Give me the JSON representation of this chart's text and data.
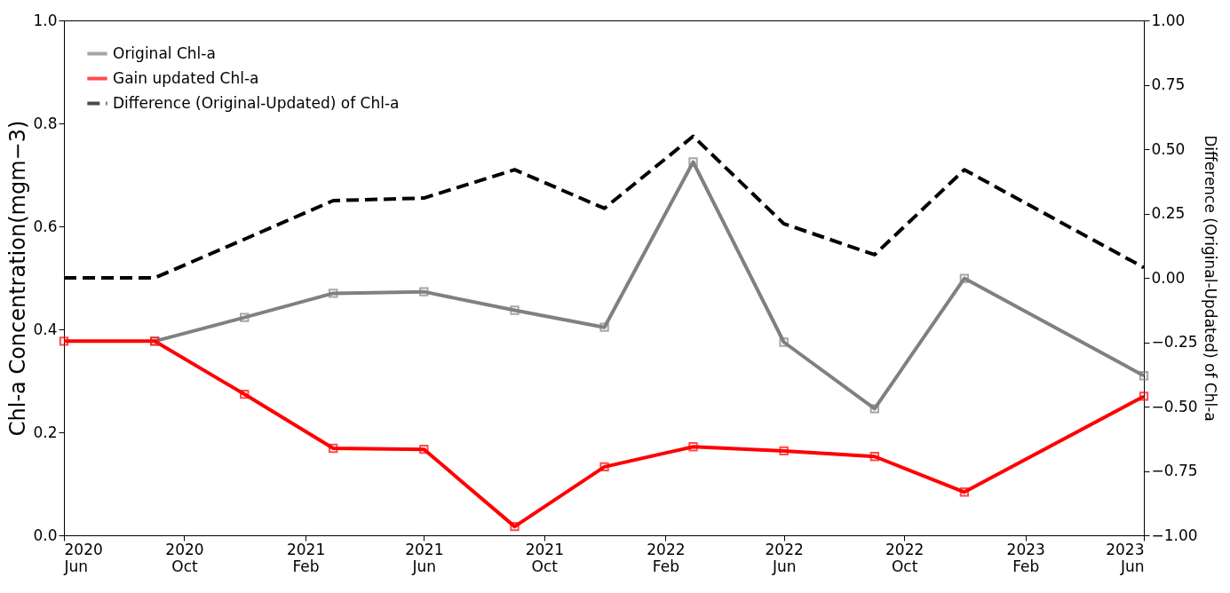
{
  "chart_data": {
    "type": "line",
    "ylabel": "Chl-a Concentration(mgm−3)",
    "y2label": "Difference (Original-Updated) of Chl-a",
    "x": [
      "2020-06",
      "2020-09",
      "2020-12",
      "2021-03",
      "2021-06",
      "2021-09",
      "2021-12",
      "2022-03",
      "2022-06",
      "2022-09",
      "2022-12",
      "2023-06"
    ],
    "series": [
      {
        "name": "Original Chl-a",
        "color": "#808080",
        "marker": "square",
        "line_style": "solid",
        "values": [
          null,
          0.377,
          0.423,
          0.47,
          0.473,
          0.437,
          0.404,
          0.725,
          0.375,
          0.246,
          0.499,
          0.31
        ]
      },
      {
        "name": "Gain updated Chl-a",
        "color": "#ff0000",
        "marker": "square",
        "line_style": "solid",
        "values": [
          0.377,
          0.377,
          0.274,
          0.169,
          0.167,
          0.017,
          0.133,
          0.172,
          0.164,
          0.153,
          0.084,
          0.27
        ]
      },
      {
        "name": "Difference (Original-Updated) of Chl-a",
        "color": "#000000",
        "marker": "none",
        "line_style": "dashed",
        "axis": "y2",
        "values": [
          0.0,
          0.0,
          0.15,
          0.3,
          0.31,
          0.42,
          0.27,
          0.55,
          0.21,
          0.09,
          0.42,
          0.04
        ]
      }
    ],
    "xlim": [
      "2020-06",
      "2023-06"
    ],
    "xticks": [
      {
        "value": "2020-06",
        "label": "2020\nJun"
      },
      {
        "value": "2020-10",
        "label": "2020\nOct"
      },
      {
        "value": "2021-02",
        "label": "2021\nFeb"
      },
      {
        "value": "2021-06",
        "label": "2021\nJun"
      },
      {
        "value": "2021-10",
        "label": "2021\nOct"
      },
      {
        "value": "2022-02",
        "label": "2022\nFeb"
      },
      {
        "value": "2022-06",
        "label": "2022\nJun"
      },
      {
        "value": "2022-10",
        "label": "2022\nOct"
      },
      {
        "value": "2023-02",
        "label": "2023\nFeb"
      },
      {
        "value": "2023-06",
        "label": "2023\nJun"
      }
    ],
    "ylim": [
      0,
      1
    ],
    "yticks": [
      {
        "value": 0,
        "label": "0.0"
      },
      {
        "value": 0.2,
        "label": "0.2"
      },
      {
        "value": 0.4,
        "label": "0.4"
      },
      {
        "value": 0.6,
        "label": "0.6"
      },
      {
        "value": 0.8,
        "label": "0.8"
      },
      {
        "value": 1,
        "label": "1.0"
      }
    ],
    "y2lim": [
      -1,
      1
    ],
    "y2ticks": [
      {
        "value": -1,
        "label": "−1.00"
      },
      {
        "value": -0.75,
        "label": "−0.75"
      },
      {
        "value": -0.5,
        "label": "−0.50"
      },
      {
        "value": -0.25,
        "label": "−0.25"
      },
      {
        "value": 0,
        "label": "0.00"
      },
      {
        "value": 0.25,
        "label": "0.25"
      },
      {
        "value": 0.5,
        "label": "0.50"
      },
      {
        "value": 0.75,
        "label": "0.75"
      },
      {
        "value": 1,
        "label": "1.00"
      }
    ],
    "grid": false,
    "legend": "top left"
  }
}
